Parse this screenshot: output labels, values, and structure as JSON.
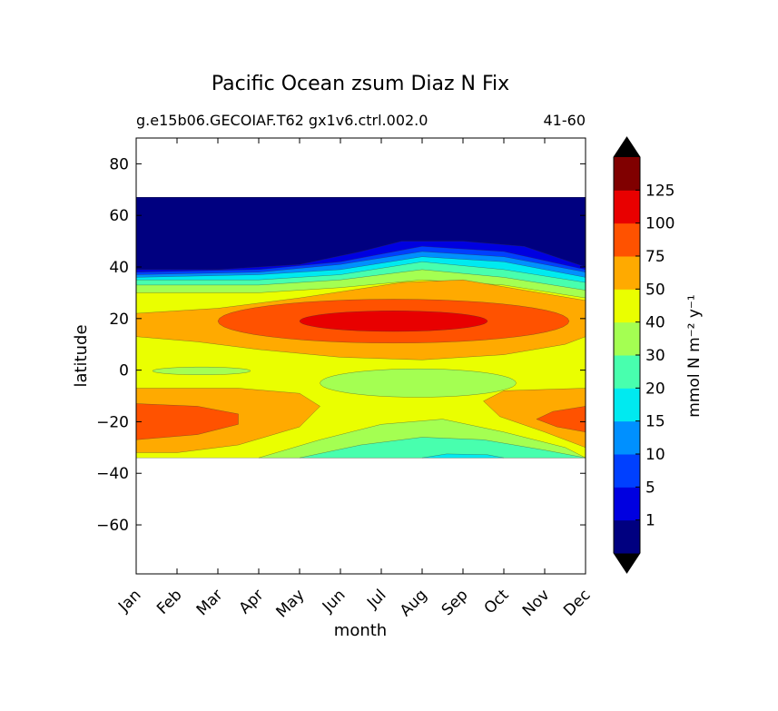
{
  "chart_data": {
    "type": "heatmap",
    "subtype": "filled-contour",
    "title": "Pacific Ocean zsum Diaz N Fix",
    "subtitle_left": "g.e15b06.GECOIAF.T62 gx1v6.ctrl.002.0",
    "subtitle_right": "41-60",
    "xlabel": "month",
    "ylabel": "latitude",
    "x_ticks": [
      "Jan",
      "Feb",
      "Mar",
      "Apr",
      "May",
      "Jun",
      "Jul",
      "Aug",
      "Sep",
      "Oct",
      "Nov",
      "Dec"
    ],
    "xlim": [
      1,
      12
    ],
    "ylim": [
      -79,
      90
    ],
    "y_ticks": [
      80,
      60,
      40,
      20,
      0,
      -20,
      -40,
      -60
    ],
    "y_tick_labels": [
      "80",
      "60",
      "40",
      "20",
      "0",
      "−20",
      "−40",
      "−60"
    ],
    "data_extent_lat": [
      -34,
      67
    ],
    "colorbar": {
      "label": "mmol N m⁻² y⁻¹",
      "extend": "both",
      "levels": [
        1,
        5,
        10,
        15,
        20,
        30,
        40,
        50,
        75,
        100,
        125
      ],
      "tick_labels": [
        "1",
        "5",
        "10",
        "15",
        "20",
        "30",
        "40",
        "50",
        "75",
        "100",
        "125"
      ],
      "band_colors": [
        "#000080",
        "#0000e0",
        "#0040ff",
        "#0090ff",
        "#00eaf0",
        "#48ffae",
        "#a4ff52",
        "#eaff00",
        "#ffaa00",
        "#ff5200",
        "#e80000",
        "#800000"
      ],
      "under_color": "#000000",
      "over_color": "#000000"
    },
    "contour_regions": [
      {
        "level": "0-1",
        "color": "#000080",
        "lat_range": [
          40,
          67
        ],
        "months": "Jan-Dec",
        "note": "north of ~40°N, lower boundary rises to ~50°N in Jul-Aug"
      },
      {
        "level": "40-50",
        "color": "#eaff00",
        "lat_range": [
          -20,
          30
        ],
        "months": "Jan-Dec"
      },
      {
        "level": "50-75",
        "color": "#ffaa00",
        "lat_range": [
          10,
          35
        ],
        "months": "Jan-Dec"
      },
      {
        "level": "75-100",
        "color": "#ff5200",
        "lat_range": [
          12,
          28
        ],
        "months": "Apr-Nov",
        "center": [
          7.3,
          19
        ]
      },
      {
        "level": "100-125",
        "color": "#e80000",
        "lat_range": [
          15,
          23
        ],
        "months": "Jun-Aug",
        "center": [
          7.3,
          19
        ]
      },
      {
        "level": "50-75",
        "color": "#ffaa00",
        "lat_range": [
          -31,
          -7
        ],
        "months": "Jan-Apr and Oct-Dec"
      },
      {
        "level": "75-100",
        "color": "#ff5200",
        "lat_range": [
          -27,
          -14
        ],
        "months": "Jan-Feb and Nov-Dec"
      },
      {
        "level": "30-40",
        "color": "#a4ff52",
        "lat_range": [
          -12,
          -1
        ],
        "months": "Jul-Sep",
        "center": [
          7.8,
          -5
        ]
      },
      {
        "level": "30-40",
        "color": "#a4ff52",
        "lat_range": [
          -2,
          1
        ],
        "months": "Feb-Mar",
        "center": [
          2.5,
          0
        ]
      },
      {
        "level": "20-30",
        "color": "#48ffae",
        "lat_range": [
          -34,
          -26
        ],
        "months": "May-Dec"
      },
      {
        "level": "15-20",
        "color": "#00eaf0",
        "lat_range": [
          -34,
          -32
        ],
        "months": "Aug-Sep"
      }
    ]
  }
}
